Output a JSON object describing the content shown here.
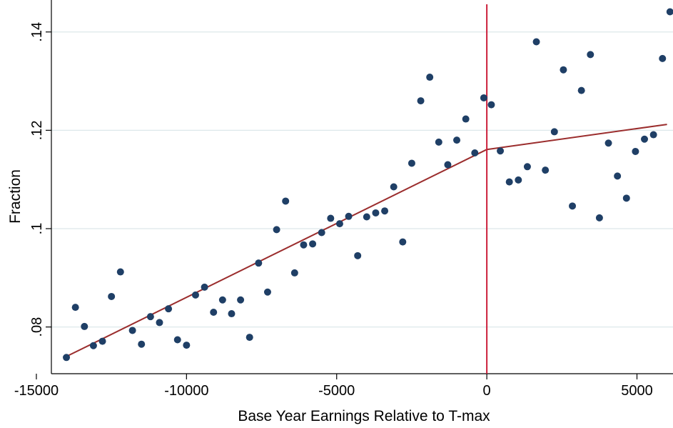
{
  "chart_data": {
    "type": "scatter",
    "title": "",
    "xlabel": "Base Year Earnings Relative to T-max",
    "ylabel": "Fraction",
    "xlim": [
      -14500,
      6200
    ],
    "ylim": [
      0.0705,
      0.1465
    ],
    "x_ticks": [
      -15000,
      -10000,
      -5000,
      0,
      5000
    ],
    "x_tick_labels": [
      "-15000",
      "-10000",
      "-5000",
      "0",
      "5000"
    ],
    "y_ticks": [
      0.08,
      0.1,
      0.12,
      0.14
    ],
    "y_tick_labels": [
      ".08",
      ".1",
      ".12",
      ".14"
    ],
    "grid": true,
    "colors": {
      "points": "#1f3f66",
      "fit": "#9b2d2d",
      "vline": "#cc1f3a",
      "grid": "#dde8ea"
    },
    "vline_x": 0,
    "points": [
      [
        -14000,
        0.0738
      ],
      [
        -13700,
        0.084
      ],
      [
        -13400,
        0.0801
      ],
      [
        -13100,
        0.0762
      ],
      [
        -12800,
        0.0771
      ],
      [
        -12500,
        0.0862
      ],
      [
        -12200,
        0.0912
      ],
      [
        -11800,
        0.0793
      ],
      [
        -11500,
        0.0765
      ],
      [
        -11200,
        0.0821
      ],
      [
        -10900,
        0.0809
      ],
      [
        -10600,
        0.0837
      ],
      [
        -10300,
        0.0774
      ],
      [
        -10000,
        0.0763
      ],
      [
        -9700,
        0.0865
      ],
      [
        -9400,
        0.0881
      ],
      [
        -9100,
        0.083
      ],
      [
        -8800,
        0.0855
      ],
      [
        -8500,
        0.0827
      ],
      [
        -8200,
        0.0855
      ],
      [
        -7900,
        0.0779
      ],
      [
        -7600,
        0.093
      ],
      [
        -7300,
        0.0871
      ],
      [
        -7000,
        0.0998
      ],
      [
        -6700,
        0.1056
      ],
      [
        -6400,
        0.091
      ],
      [
        -6100,
        0.0967
      ],
      [
        -5800,
        0.0969
      ],
      [
        -5500,
        0.0992
      ],
      [
        -5200,
        0.1021
      ],
      [
        -4900,
        0.101
      ],
      [
        -4600,
        0.1025
      ],
      [
        -4300,
        0.0945
      ],
      [
        -4000,
        0.1024
      ],
      [
        -3700,
        0.1032
      ],
      [
        -3400,
        0.1036
      ],
      [
        -3100,
        0.1085
      ],
      [
        -2800,
        0.0973
      ],
      [
        -2500,
        0.1133
      ],
      [
        -2200,
        0.126
      ],
      [
        -1900,
        0.1308
      ],
      [
        -1600,
        0.1176
      ],
      [
        -1300,
        0.113
      ],
      [
        -1000,
        0.118
      ],
      [
        -700,
        0.1223
      ],
      [
        -400,
        0.1154
      ],
      [
        -100,
        0.1266
      ],
      [
        150,
        0.1252
      ],
      [
        450,
        0.1158
      ],
      [
        750,
        0.1095
      ],
      [
        1050,
        0.1099
      ],
      [
        1350,
        0.1126
      ],
      [
        1650,
        0.138
      ],
      [
        1950,
        0.1119
      ],
      [
        2250,
        0.1197
      ],
      [
        2550,
        0.1323
      ],
      [
        2850,
        0.1046
      ],
      [
        3150,
        0.1281
      ],
      [
        3450,
        0.1354
      ],
      [
        3750,
        0.1022
      ],
      [
        4050,
        0.1174
      ],
      [
        4350,
        0.1107
      ],
      [
        4650,
        0.1062
      ],
      [
        4950,
        0.1157
      ],
      [
        5250,
        0.1182
      ],
      [
        5550,
        0.1191
      ],
      [
        5850,
        0.1346
      ],
      [
        6100,
        0.1441
      ]
    ],
    "fit_lines": [
      {
        "x": [
          -14000,
          0
        ],
        "y": [
          0.074,
          0.1161
        ]
      },
      {
        "x": [
          0,
          6000
        ],
        "y": [
          0.1161,
          0.1212
        ]
      }
    ]
  }
}
